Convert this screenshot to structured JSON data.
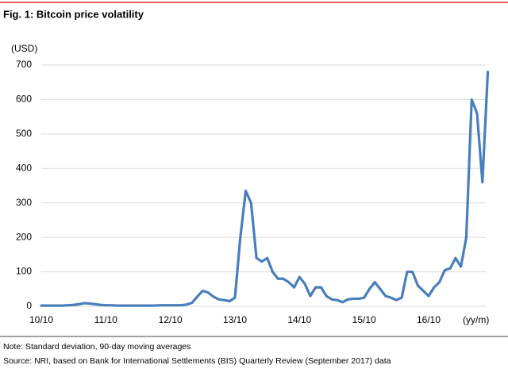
{
  "chart_data": {
    "type": "line",
    "title": "Fig. 1: Bitcoin price volatility",
    "y_label": "(USD)",
    "x_label": "(yy/m)",
    "note": "Note: Standard deviation, 90-day moving averages",
    "source": "Source: NRI, based on Bank for International Settlements (BIS) Quarterly Review (September 2017) data",
    "x": [
      "10/10",
      "10/11",
      "10/12",
      "11/1",
      "11/2",
      "11/3",
      "11/4",
      "11/5",
      "11/6",
      "11/7",
      "11/8",
      "11/9",
      "11/10",
      "11/11",
      "11/12",
      "12/1",
      "12/2",
      "12/3",
      "12/4",
      "12/5",
      "12/6",
      "12/7",
      "12/8",
      "12/9",
      "12/10",
      "12/11",
      "12/12",
      "13/1",
      "13/2",
      "13/3",
      "13/4",
      "13/5",
      "13/6",
      "13/7",
      "13/8",
      "13/9",
      "13/10",
      "13/11",
      "13/12",
      "14/1",
      "14/2",
      "14/3",
      "14/4",
      "14/5",
      "14/6",
      "14/7",
      "14/8",
      "14/9",
      "14/10",
      "14/11",
      "14/12",
      "15/1",
      "15/2",
      "15/3",
      "15/4",
      "15/5",
      "15/6",
      "15/7",
      "15/8",
      "15/9",
      "15/10",
      "15/11",
      "15/12",
      "16/1",
      "16/2",
      "16/3",
      "16/4",
      "16/5",
      "16/6",
      "16/7",
      "16/8",
      "16/9",
      "16/10",
      "16/11",
      "16/12",
      "17/1",
      "17/2",
      "17/3",
      "17/4",
      "17/5",
      "17/6",
      "17/7",
      "17/8",
      "17/9"
    ],
    "series": [
      {
        "name": "Bitcoin price volatility",
        "color": "#4a7ebb",
        "values": [
          2,
          2,
          2,
          2,
          2,
          3,
          4,
          6,
          9,
          8,
          6,
          4,
          3,
          3,
          2,
          2,
          2,
          2,
          2,
          2,
          2,
          2,
          3,
          3,
          3,
          3,
          3,
          5,
          10,
          28,
          45,
          40,
          28,
          20,
          18,
          15,
          25,
          200,
          335,
          300,
          140,
          130,
          140,
          100,
          80,
          80,
          70,
          55,
          85,
          65,
          30,
          55,
          55,
          30,
          20,
          18,
          12,
          20,
          22,
          22,
          25,
          50,
          70,
          50,
          30,
          25,
          18,
          25,
          100,
          100,
          60,
          45,
          30,
          55,
          70,
          105,
          110,
          140,
          115,
          200,
          600,
          560,
          360,
          680
        ]
      }
    ],
    "xticks": [
      "10/10",
      "11/10",
      "12/10",
      "13/10",
      "14/10",
      "15/10",
      "16/10"
    ],
    "ylim": [
      0,
      700
    ],
    "yticks": [
      0,
      100,
      200,
      300,
      400,
      500,
      600,
      700
    ],
    "grid": true
  }
}
